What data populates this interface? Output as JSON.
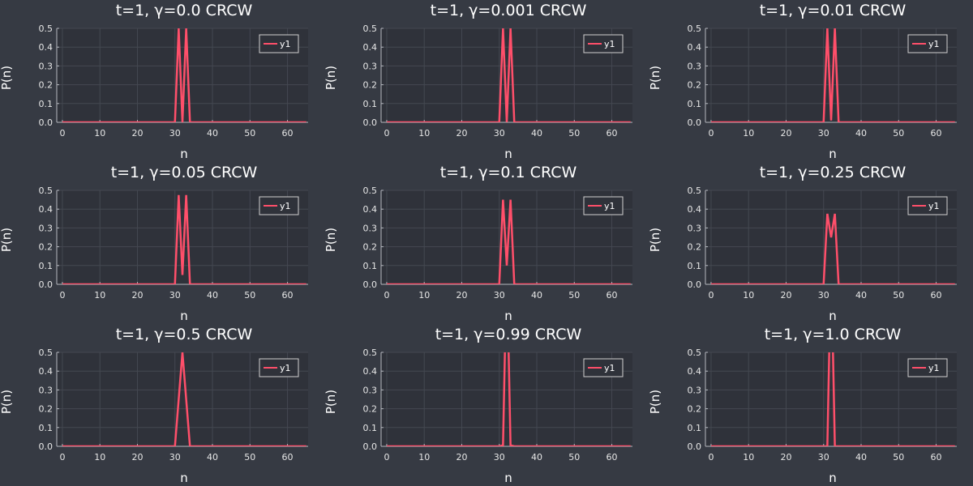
{
  "chart_data": [
    {
      "type": "line",
      "title": "t=1, γ=0.0 CRCW",
      "xlabel": "n",
      "ylabel": "P(n)",
      "xlim": [
        -1.5,
        65.5
      ],
      "ylim": [
        0,
        0.5
      ],
      "x_ticks": [
        "0",
        "10",
        "20",
        "30",
        "40",
        "50",
        "60"
      ],
      "y_ticks": [
        "0.0",
        "0.1",
        "0.2",
        "0.3",
        "0.4",
        "0.5"
      ],
      "grid": true,
      "legend_position": "top-right",
      "series": [
        {
          "name": "y1",
          "x": [
            0,
            30,
            31,
            32,
            33,
            34,
            65
          ],
          "y": [
            0,
            0,
            0.5,
            0,
            0.5,
            0,
            0
          ]
        }
      ]
    },
    {
      "type": "line",
      "title": "t=1, γ=0.001 CRCW",
      "xlabel": "n",
      "ylabel": "P(n)",
      "xlim": [
        -1.5,
        65.5
      ],
      "ylim": [
        0,
        0.5
      ],
      "x_ticks": [
        "0",
        "10",
        "20",
        "30",
        "40",
        "50",
        "60"
      ],
      "y_ticks": [
        "0.0",
        "0.1",
        "0.2",
        "0.3",
        "0.4",
        "0.5"
      ],
      "grid": true,
      "legend_position": "top-right",
      "series": [
        {
          "name": "y1",
          "x": [
            0,
            30,
            31,
            32,
            33,
            34,
            65
          ],
          "y": [
            0,
            0,
            0.5,
            0.001,
            0.5,
            0,
            0
          ]
        }
      ]
    },
    {
      "type": "line",
      "title": "t=1, γ=0.01 CRCW",
      "xlabel": "n",
      "ylabel": "P(n)",
      "xlim": [
        -1.5,
        65.5
      ],
      "ylim": [
        0,
        0.5
      ],
      "x_ticks": [
        "0",
        "10",
        "20",
        "30",
        "40",
        "50",
        "60"
      ],
      "y_ticks": [
        "0.0",
        "0.1",
        "0.2",
        "0.3",
        "0.4",
        "0.5"
      ],
      "grid": true,
      "legend_position": "top-right",
      "series": [
        {
          "name": "y1",
          "x": [
            0,
            30,
            31,
            32,
            33,
            34,
            65
          ],
          "y": [
            0,
            0,
            0.5,
            0.01,
            0.5,
            0,
            0
          ]
        }
      ]
    },
    {
      "type": "line",
      "title": "t=1, γ=0.05 CRCW",
      "xlabel": "n",
      "ylabel": "P(n)",
      "xlim": [
        -1.5,
        65.5
      ],
      "ylim": [
        0,
        0.5
      ],
      "x_ticks": [
        "0",
        "10",
        "20",
        "30",
        "40",
        "50",
        "60"
      ],
      "y_ticks": [
        "0.0",
        "0.1",
        "0.2",
        "0.3",
        "0.4",
        "0.5"
      ],
      "grid": true,
      "legend_position": "top-right",
      "series": [
        {
          "name": "y1",
          "x": [
            0,
            30,
            31,
            32,
            33,
            34,
            65
          ],
          "y": [
            0,
            0,
            0.475,
            0.05,
            0.475,
            0,
            0
          ]
        }
      ]
    },
    {
      "type": "line",
      "title": "t=1, γ=0.1 CRCW",
      "xlabel": "n",
      "ylabel": "P(n)",
      "xlim": [
        -1.5,
        65.5
      ],
      "ylim": [
        0,
        0.5
      ],
      "x_ticks": [
        "0",
        "10",
        "20",
        "30",
        "40",
        "50",
        "60"
      ],
      "y_ticks": [
        "0.0",
        "0.1",
        "0.2",
        "0.3",
        "0.4",
        "0.5"
      ],
      "grid": true,
      "legend_position": "top-right",
      "series": [
        {
          "name": "y1",
          "x": [
            0,
            30,
            31,
            32,
            33,
            34,
            65
          ],
          "y": [
            0,
            0,
            0.45,
            0.1,
            0.45,
            0,
            0
          ]
        }
      ]
    },
    {
      "type": "line",
      "title": "t=1, γ=0.25 CRCW",
      "xlabel": "n",
      "ylabel": "P(n)",
      "xlim": [
        -1.5,
        65.5
      ],
      "ylim": [
        0,
        0.5
      ],
      "x_ticks": [
        "0",
        "10",
        "20",
        "30",
        "40",
        "50",
        "60"
      ],
      "y_ticks": [
        "0.0",
        "0.1",
        "0.2",
        "0.3",
        "0.4",
        "0.5"
      ],
      "grid": true,
      "legend_position": "top-right",
      "series": [
        {
          "name": "y1",
          "x": [
            0,
            30,
            31,
            32,
            33,
            34,
            65
          ],
          "y": [
            0,
            0,
            0.375,
            0.25,
            0.375,
            0,
            0
          ]
        }
      ]
    },
    {
      "type": "line",
      "title": "t=1, γ=0.5 CRCW",
      "xlabel": "n",
      "ylabel": "P(n)",
      "xlim": [
        -1.5,
        65.5
      ],
      "ylim": [
        0,
        0.5
      ],
      "x_ticks": [
        "0",
        "10",
        "20",
        "30",
        "40",
        "50",
        "60"
      ],
      "y_ticks": [
        "0.0",
        "0.1",
        "0.2",
        "0.3",
        "0.4",
        "0.5"
      ],
      "grid": true,
      "legend_position": "top-right",
      "series": [
        {
          "name": "y1",
          "x": [
            0,
            30,
            31,
            32,
            33,
            34,
            65
          ],
          "y": [
            0,
            0,
            0.25,
            0.5,
            0.25,
            0,
            0
          ]
        }
      ]
    },
    {
      "type": "line",
      "title": "t=1, γ=0.99 CRCW",
      "xlabel": "n",
      "ylabel": "P(n)",
      "xlim": [
        -1.5,
        65.5
      ],
      "ylim": [
        0,
        0.5
      ],
      "x_ticks": [
        "0",
        "10",
        "20",
        "30",
        "40",
        "50",
        "60"
      ],
      "y_ticks": [
        "0.0",
        "0.1",
        "0.2",
        "0.3",
        "0.4",
        "0.5"
      ],
      "grid": true,
      "legend_position": "top-right",
      "series": [
        {
          "name": "y1",
          "x": [
            0,
            30,
            31,
            32,
            33,
            34,
            65
          ],
          "y": [
            0,
            0,
            0.005,
            0.99,
            0.005,
            0,
            0
          ]
        }
      ]
    },
    {
      "type": "line",
      "title": "t=1, γ=1.0 CRCW",
      "xlabel": "n",
      "ylabel": "P(n)",
      "xlim": [
        -1.5,
        65.5
      ],
      "ylim": [
        0,
        0.5
      ],
      "x_ticks": [
        "0",
        "10",
        "20",
        "30",
        "40",
        "50",
        "60"
      ],
      "y_ticks": [
        "0.0",
        "0.1",
        "0.2",
        "0.3",
        "0.4",
        "0.5"
      ],
      "grid": true,
      "legend_position": "top-right",
      "series": [
        {
          "name": "y1",
          "x": [
            0,
            30,
            31,
            32,
            33,
            34,
            65
          ],
          "y": [
            0,
            0,
            0,
            1.0,
            0,
            0,
            0
          ]
        }
      ]
    }
  ],
  "colors": {
    "background": "#363a43",
    "plot_area": "#2f323a",
    "grid": "#444851",
    "axis": "#b5b8bf",
    "series": "#ff4f6a",
    "legend_border": "#d0d0d0",
    "text": "#ffffff"
  }
}
